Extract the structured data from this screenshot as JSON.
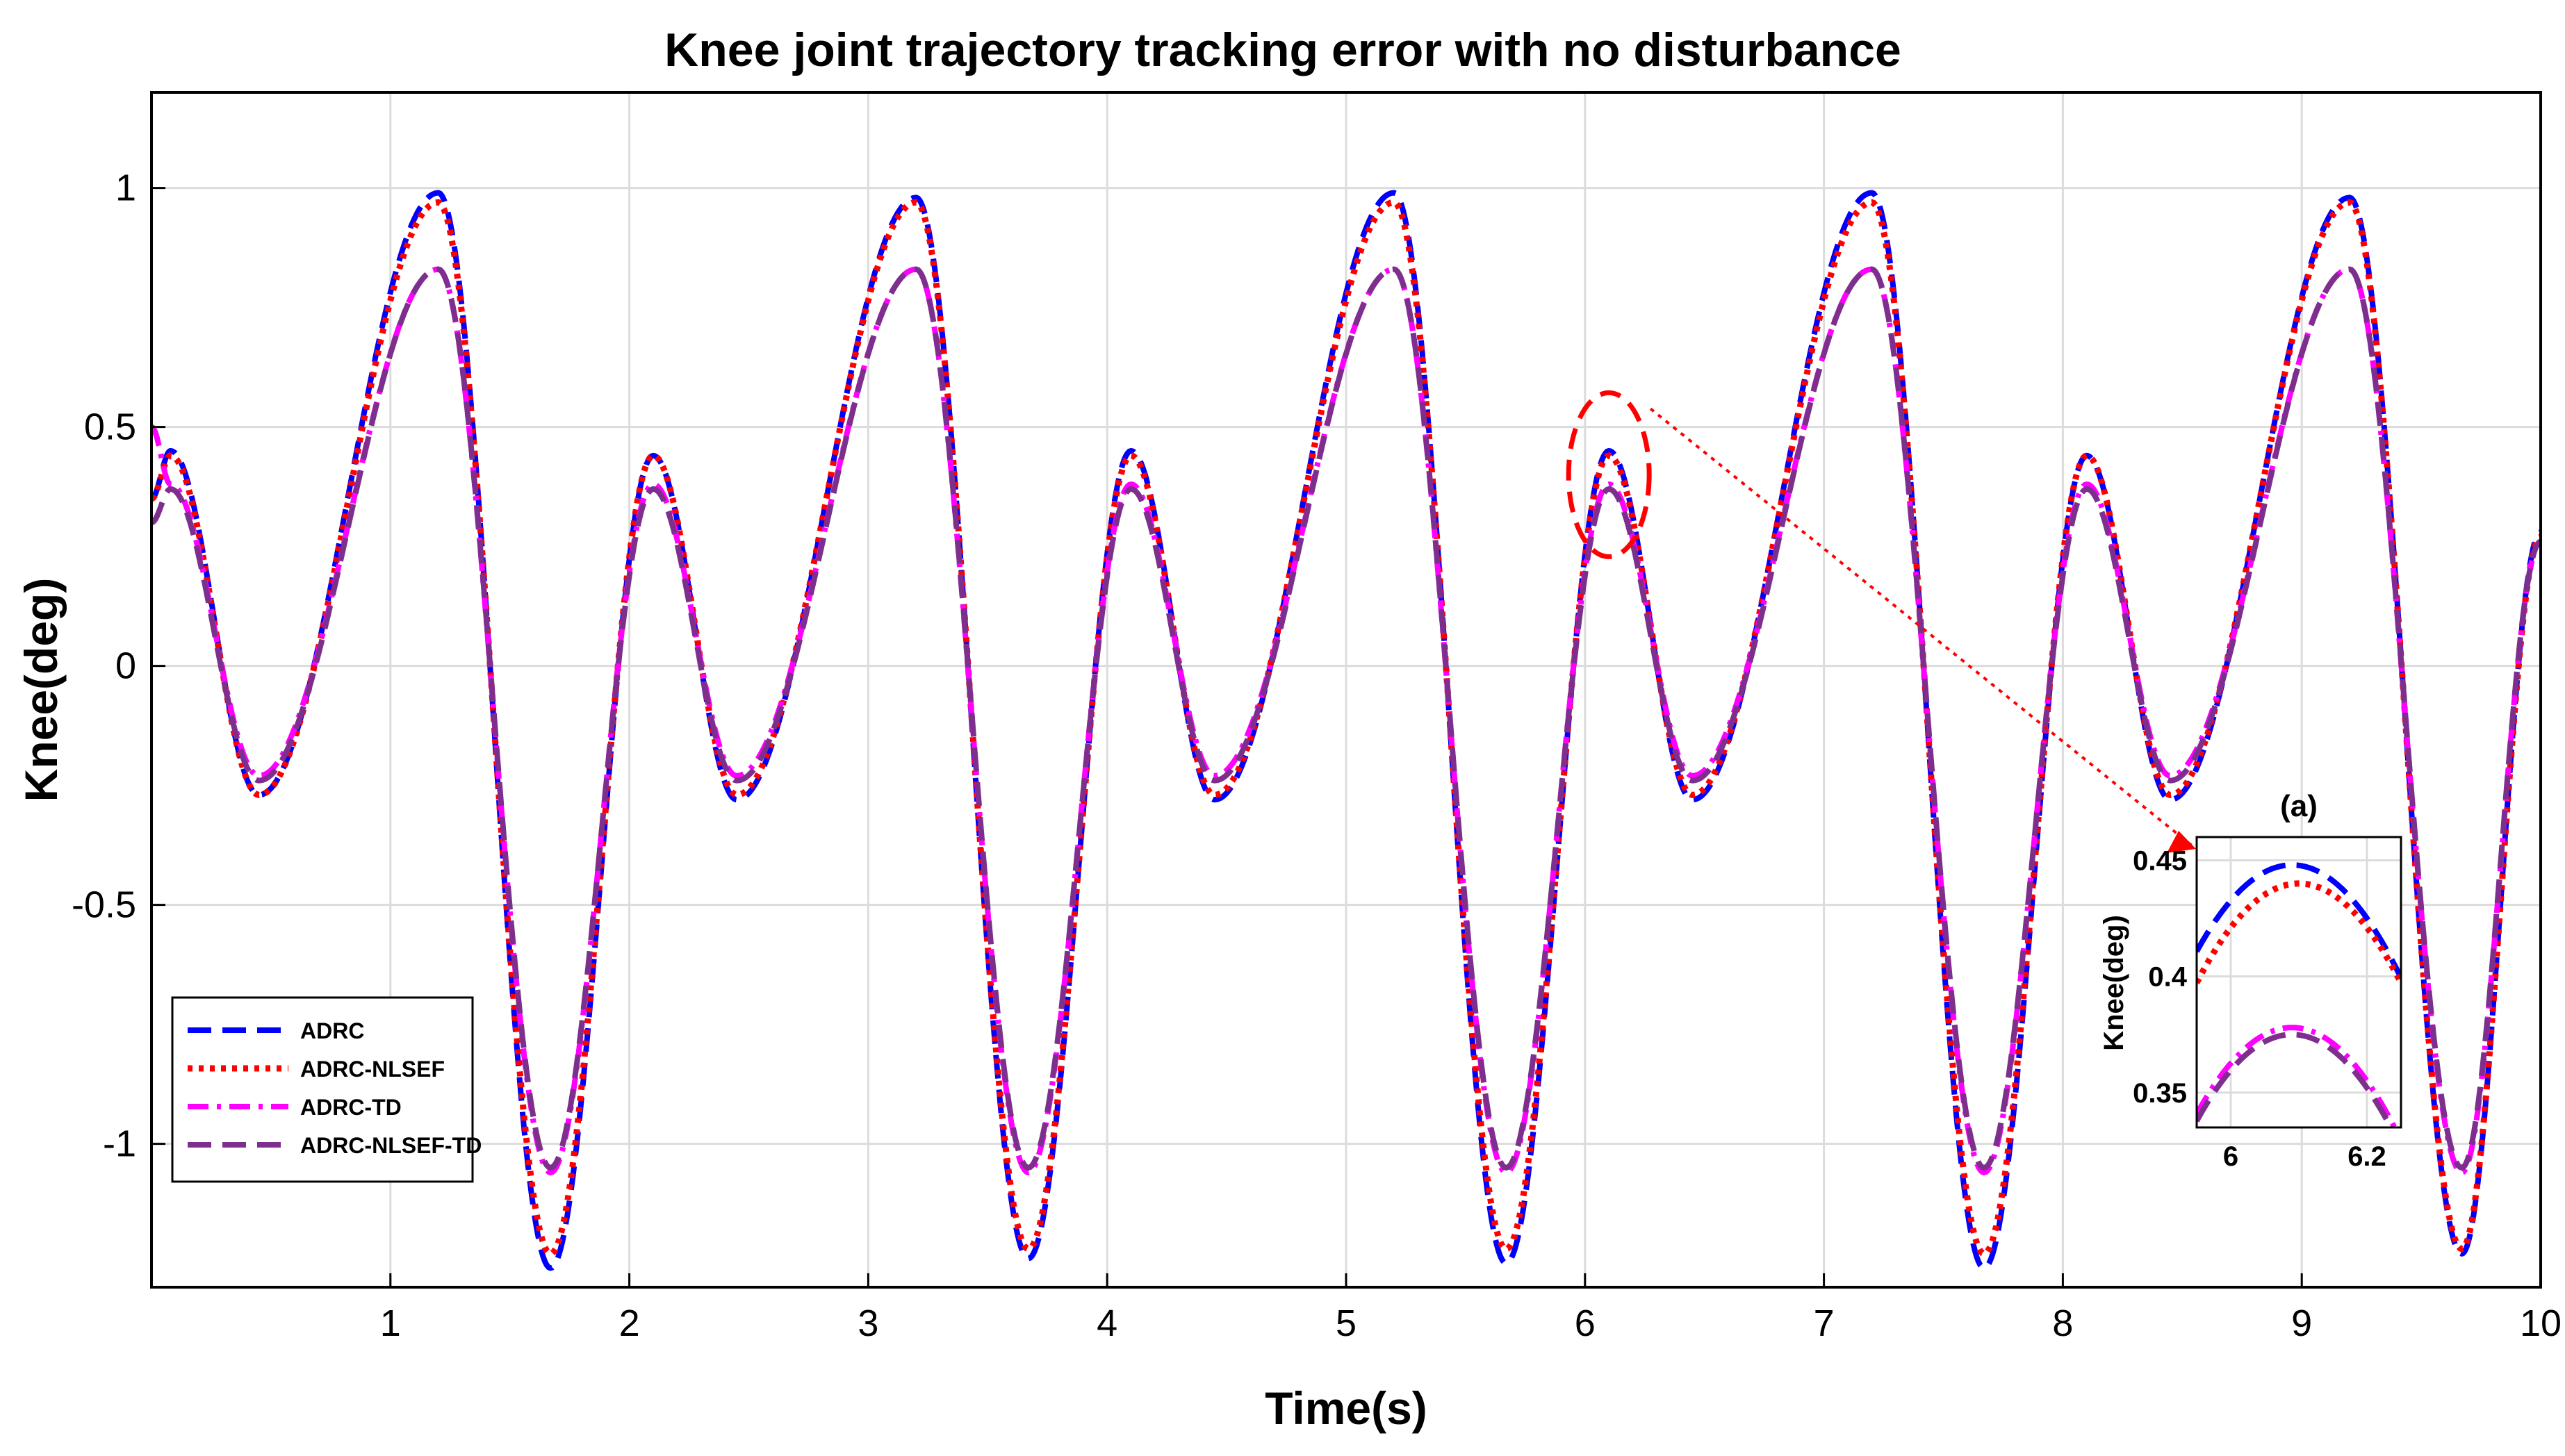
{
  "chart_data": {
    "type": "line",
    "title": "Knee joint trajectory tracking error with no disturbance",
    "xlabel": "Time(s)",
    "ylabel": "Knee(deg)",
    "xlim": [
      0,
      10
    ],
    "ylim": [
      -1.3,
      1.2
    ],
    "x_ticks": [
      1,
      2,
      3,
      4,
      5,
      6,
      7,
      8,
      9,
      10
    ],
    "x_tick_labels": [
      "1",
      "2",
      "3",
      "4",
      "5",
      "6",
      "7",
      "8",
      "9",
      "10"
    ],
    "y_ticks": [
      1,
      0.5,
      0,
      -0.5,
      -1
    ],
    "y_tick_labels": [
      "1",
      "0.5",
      "0",
      "-0.5",
      "-1"
    ],
    "grid": true,
    "legend_position": "bottom-left",
    "series": [
      {
        "name": "ADRC",
        "color": "#0000ff",
        "style": "dashed",
        "x": [
          0,
          0.08,
          0.45,
          1.2,
          1.67,
          2.1,
          2.45,
          3.2,
          3.67,
          4.1,
          4.45,
          5.2,
          5.67,
          6.1,
          6.45,
          7.2,
          7.67,
          8.1,
          8.45,
          9.2,
          9.67,
          10
        ],
        "y": [
          0.35,
          0.45,
          -0.27,
          0.99,
          -1.26,
          0.44,
          -0.28,
          0.98,
          -1.24,
          0.45,
          -0.28,
          0.99,
          -1.25,
          0.45,
          -0.28,
          0.99,
          -1.26,
          0.44,
          -0.28,
          0.98,
          -1.23,
          0.28
        ]
      },
      {
        "name": "ADRC-NLSEF",
        "color": "#ff0000",
        "style": "dotted",
        "x": [
          0,
          0.08,
          0.45,
          1.2,
          1.67,
          2.1,
          2.45,
          3.2,
          3.67,
          4.1,
          4.45,
          5.2,
          5.67,
          6.1,
          6.45,
          7.2,
          7.67,
          8.1,
          8.45,
          9.2,
          9.67,
          10
        ],
        "y": [
          0.35,
          0.44,
          -0.27,
          0.97,
          -1.23,
          0.44,
          -0.27,
          0.97,
          -1.22,
          0.44,
          -0.27,
          0.97,
          -1.22,
          0.44,
          -0.27,
          0.97,
          -1.23,
          0.44,
          -0.27,
          0.97,
          -1.22,
          0.27
        ]
      },
      {
        "name": "ADRC-TD",
        "color": "#ff00ff",
        "style": "dashdot",
        "x": [
          0,
          0.08,
          0.45,
          1.2,
          1.67,
          2.1,
          2.45,
          3.2,
          3.67,
          4.1,
          4.45,
          5.2,
          5.67,
          6.1,
          6.45,
          7.2,
          7.67,
          8.1,
          8.45,
          9.2,
          9.67,
          10
        ],
        "y": [
          0.5,
          0.38,
          -0.23,
          0.83,
          -1.06,
          0.38,
          -0.23,
          0.83,
          -1.06,
          0.38,
          -0.23,
          0.83,
          -1.06,
          0.38,
          -0.23,
          0.83,
          -1.06,
          0.38,
          -0.23,
          0.83,
          -1.06,
          0.26
        ]
      },
      {
        "name": "ADRC-NLSEF-TD",
        "color": "#7e2f8e",
        "style": "dashed",
        "x": [
          0,
          0.08,
          0.45,
          1.2,
          1.67,
          2.1,
          2.45,
          3.2,
          3.67,
          4.1,
          4.45,
          5.2,
          5.67,
          6.1,
          6.45,
          7.2,
          7.67,
          8.1,
          8.45,
          9.2,
          9.67,
          10
        ],
        "y": [
          0.3,
          0.37,
          -0.24,
          0.83,
          -1.05,
          0.37,
          -0.24,
          0.83,
          -1.05,
          0.37,
          -0.24,
          0.83,
          -1.05,
          0.37,
          -0.24,
          0.83,
          -1.05,
          0.37,
          -0.24,
          0.83,
          -1.05,
          0.26
        ]
      }
    ],
    "annotation": {
      "highlight_x": 6.1,
      "highlight_y": 0.4,
      "target": "inset (a)"
    },
    "inset": {
      "title": "(a)",
      "ylabel": "Knee(deg)",
      "xlim": [
        5.95,
        6.25
      ],
      "ylim": [
        0.335,
        0.46
      ],
      "x_ticks": [
        6,
        6.2
      ],
      "x_tick_labels": [
        "6",
        "6.2"
      ],
      "y_ticks": [
        0.45,
        0.4,
        0.35
      ],
      "y_tick_labels": [
        "0.45",
        "0.4",
        "0.35"
      ],
      "series_peaks": [
        {
          "name": "ADRC",
          "peak_x": 6.09,
          "peak_y": 0.448
        },
        {
          "name": "ADRC-NLSEF",
          "peak_x": 6.1,
          "peak_y": 0.44
        },
        {
          "name": "ADRC-TD",
          "peak_x": 6.09,
          "peak_y": 0.378
        },
        {
          "name": "ADRC-NLSEF-TD",
          "peak_x": 6.09,
          "peak_y": 0.375
        }
      ]
    }
  }
}
